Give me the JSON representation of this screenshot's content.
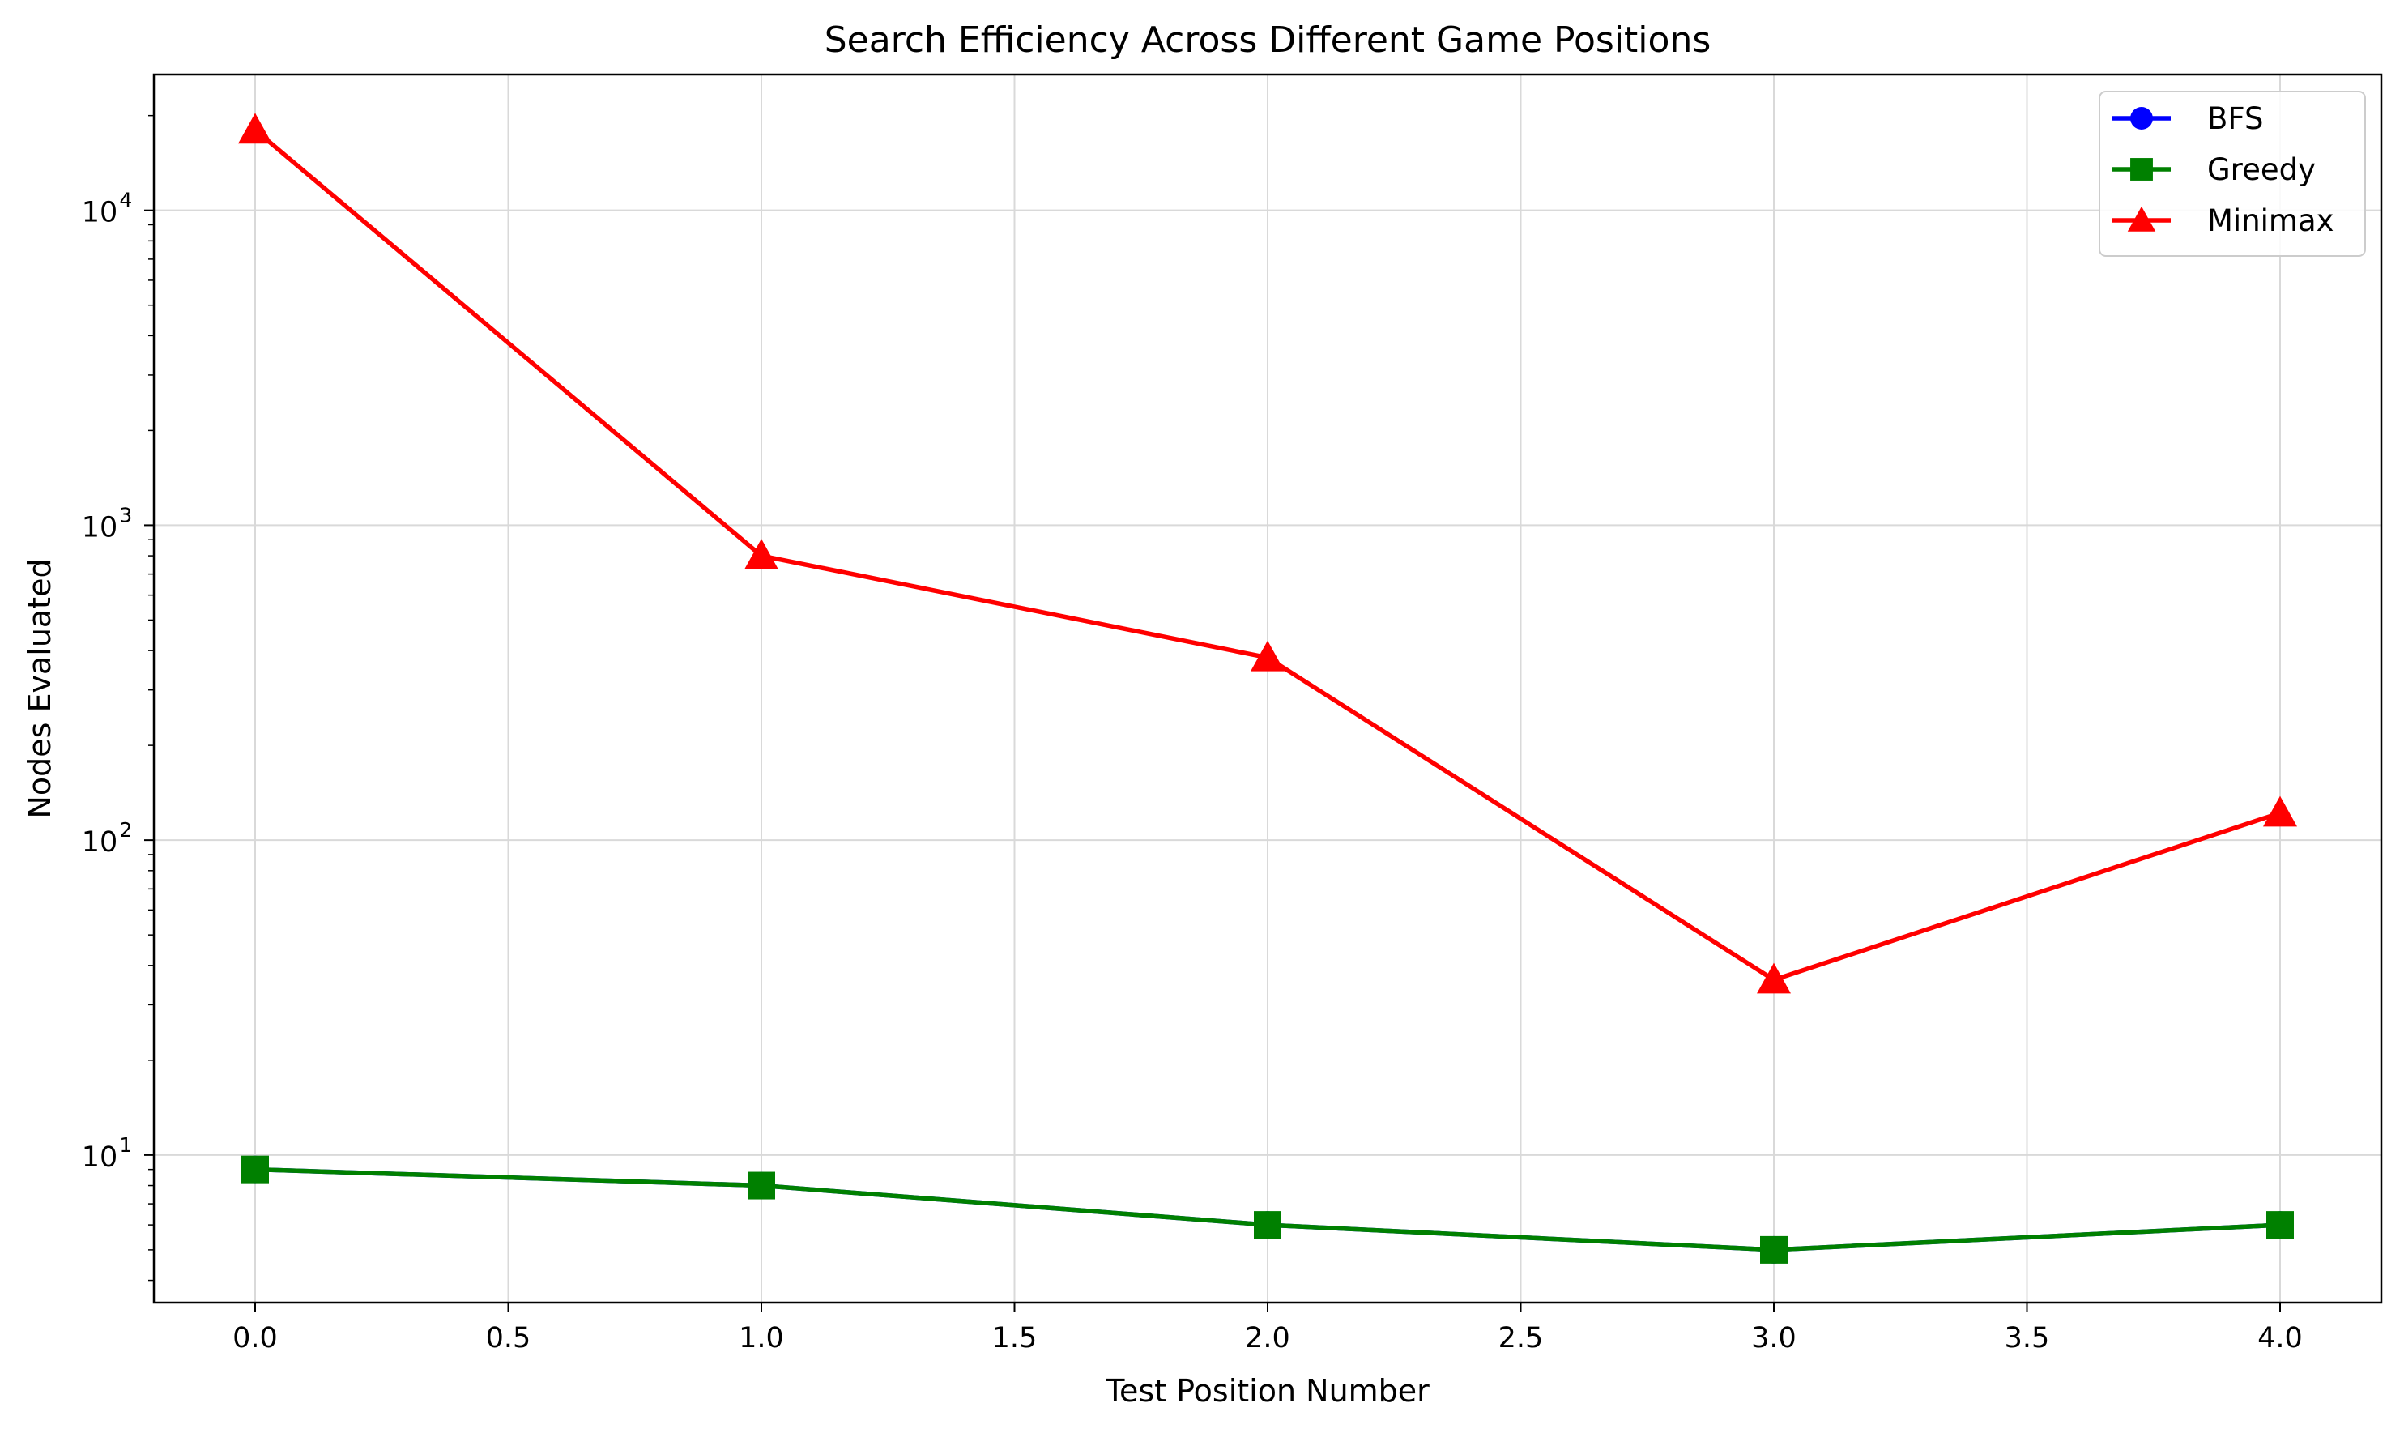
{
  "chart_data": {
    "type": "line",
    "title": "Search Efficiency Across Different Game Positions",
    "xlabel": "Test Position Number",
    "ylabel": "Nodes Evaluated",
    "xlim": [
      -0.2,
      4.2
    ],
    "ylim": [
      3.4,
      27000
    ],
    "yscale": "log",
    "grid": true,
    "legend_position": "top-right",
    "x_ticks": [
      "0.0",
      "0.5",
      "1.0",
      "1.5",
      "2.0",
      "2.5",
      "3.0",
      "3.5",
      "4.0"
    ],
    "x_tick_values": [
      0,
      0.5,
      1,
      1.5,
      2,
      2.5,
      3,
      3.5,
      4
    ],
    "y_ticks": [
      {
        "value": 10,
        "base": "10",
        "exp": "1"
      },
      {
        "value": 100,
        "base": "10",
        "exp": "2"
      },
      {
        "value": 1000,
        "base": "10",
        "exp": "3"
      },
      {
        "value": 10000,
        "base": "10",
        "exp": "4"
      }
    ],
    "x": [
      0,
      1,
      2,
      3,
      4
    ],
    "series": [
      {
        "name": "BFS",
        "color": "#0000ff",
        "marker": "circle",
        "values": [
          9,
          8,
          6,
          5,
          6
        ]
      },
      {
        "name": "Greedy",
        "color": "#008000",
        "marker": "square",
        "values": [
          9,
          8,
          6,
          5,
          6
        ]
      },
      {
        "name": "Minimax",
        "color": "#ff0000",
        "marker": "triangle",
        "values": [
          18000,
          800,
          380,
          36,
          122
        ]
      }
    ]
  }
}
